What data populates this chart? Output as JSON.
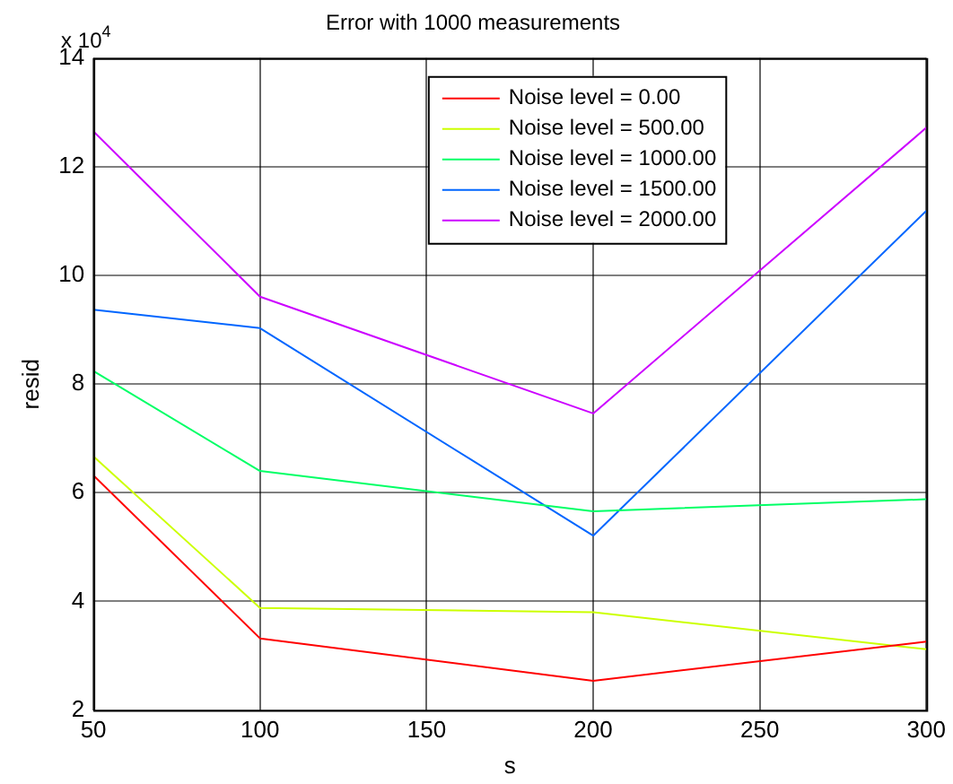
{
  "chart_data": {
    "type": "line",
    "title": "Error with 1000 measurements",
    "xlabel": "s",
    "ylabel": "resid",
    "annotations": [
      "x 10$^{4}$"
    ],
    "x": [
      50,
      100,
      200,
      300
    ],
    "series": [
      {
        "name": "Noise level = 0.00",
        "color": "#ff0000",
        "values": [
          6.32,
          3.32,
          2.54,
          3.26
        ]
      },
      {
        "name": "Noise level = 500.00",
        "color": "#ccff00",
        "values": [
          6.67,
          3.88,
          3.8,
          3.12
        ]
      },
      {
        "name": "Noise level = 1000.00",
        "color": "#00ff66",
        "values": [
          8.24,
          6.4,
          5.66,
          5.88
        ]
      },
      {
        "name": "Noise level = 1500.00",
        "color": "#0066ff",
        "values": [
          9.37,
          9.03,
          5.21,
          11.19
        ]
      },
      {
        "name": "Noise level = 2000.00",
        "color": "#cc00ff",
        "values": [
          12.65,
          9.61,
          7.46,
          12.72
        ]
      }
    ],
    "xlim": [
      50,
      300
    ],
    "xticks": [
      50,
      100,
      150,
      200,
      250,
      300
    ],
    "ylim": [
      2,
      14
    ],
    "yticks": [
      2,
      4,
      6,
      8,
      10,
      12,
      14
    ],
    "grid": true,
    "legend": "top right",
    "line_style": "solid",
    "marker": "none"
  }
}
